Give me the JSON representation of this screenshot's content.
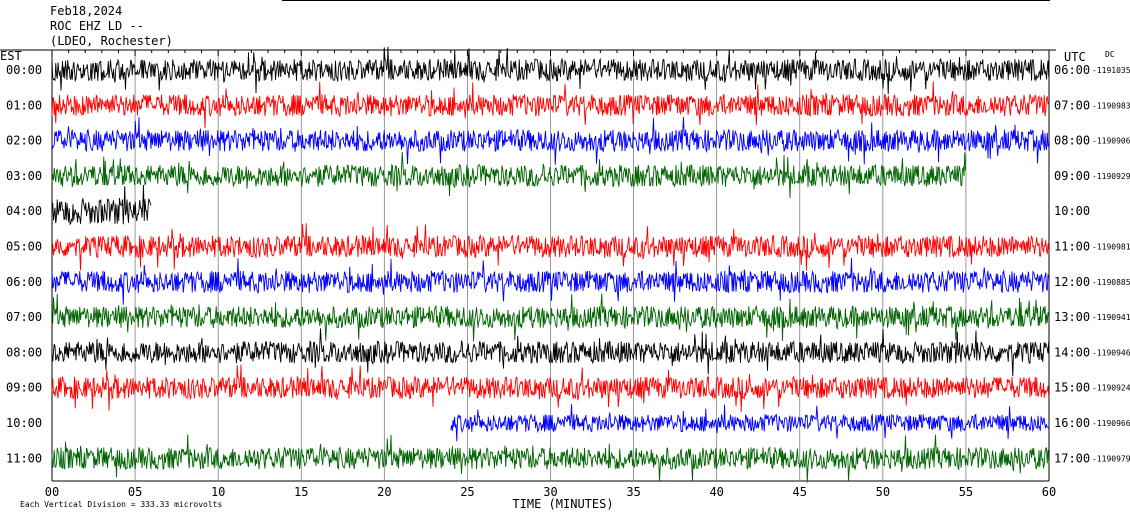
{
  "header": {
    "date": "Feb18,2024",
    "station": "ROC EHZ LD --",
    "network": "(LDEO, Rochester)"
  },
  "footer": {
    "scale_note": "Each Vertical Division = 333.33 microvolts"
  },
  "chart_data": {
    "type": "line",
    "title": "",
    "xlabel": "TIME (MINUTES)",
    "left_axis_title": "EST",
    "right_axis_title": "UTC",
    "dc_label": "DC",
    "xlim": [
      0,
      60
    ],
    "x_ticks": [
      "00",
      "05",
      "10",
      "15",
      "20",
      "25",
      "30",
      "35",
      "40",
      "45",
      "50",
      "55",
      "60"
    ],
    "grid": true,
    "trace_colors": [
      "#000000",
      "#ff0000",
      "#0000ff",
      "#006400"
    ],
    "rows": [
      {
        "est": "00:00",
        "utc": "06:00",
        "dc": "-1191035",
        "color": "#000000",
        "start": 0,
        "end": 60,
        "amp": 1.0
      },
      {
        "est": "01:00",
        "utc": "07:00",
        "dc": "-1190983",
        "color": "#ff0000",
        "start": 0,
        "end": 60,
        "amp": 1.0
      },
      {
        "est": "02:00",
        "utc": "08:00",
        "dc": "-1190906",
        "color": "#0000ff",
        "start": 0,
        "end": 60,
        "amp": 1.0
      },
      {
        "est": "03:00",
        "utc": "09:00",
        "dc": "-1190929",
        "color": "#006400",
        "start": 0,
        "end": 55,
        "amp": 1.0
      },
      {
        "est": "04:00",
        "utc": "10:00",
        "dc": "",
        "color": "#000000",
        "start": 0,
        "end": 6,
        "amp": 1.2
      },
      {
        "est": "05:00",
        "utc": "11:00",
        "dc": "-1190981",
        "color": "#ff0000",
        "start": 0,
        "end": 60,
        "amp": 1.0
      },
      {
        "est": "06:00",
        "utc": "12:00",
        "dc": "-1190885",
        "color": "#0000ff",
        "start": 0,
        "end": 60,
        "amp": 1.0
      },
      {
        "est": "07:00",
        "utc": "13:00",
        "dc": "-1190941",
        "color": "#006400",
        "start": 0,
        "end": 60,
        "amp": 1.0
      },
      {
        "est": "08:00",
        "utc": "14:00",
        "dc": "-1190946",
        "color": "#000000",
        "start": 0,
        "end": 60,
        "amp": 1.0
      },
      {
        "est": "09:00",
        "utc": "15:00",
        "dc": "-1190924",
        "color": "#ff0000",
        "start": 0,
        "end": 60,
        "amp": 1.0
      },
      {
        "est": "10:00",
        "utc": "16:00",
        "dc": "-1190966",
        "color": "#0000ff",
        "start": 24,
        "end": 60,
        "amp": 0.8
      },
      {
        "est": "11:00",
        "utc": "17:00",
        "dc": "-1190979",
        "color": "#006400",
        "start": 0,
        "end": 60,
        "amp": 1.0
      }
    ]
  }
}
